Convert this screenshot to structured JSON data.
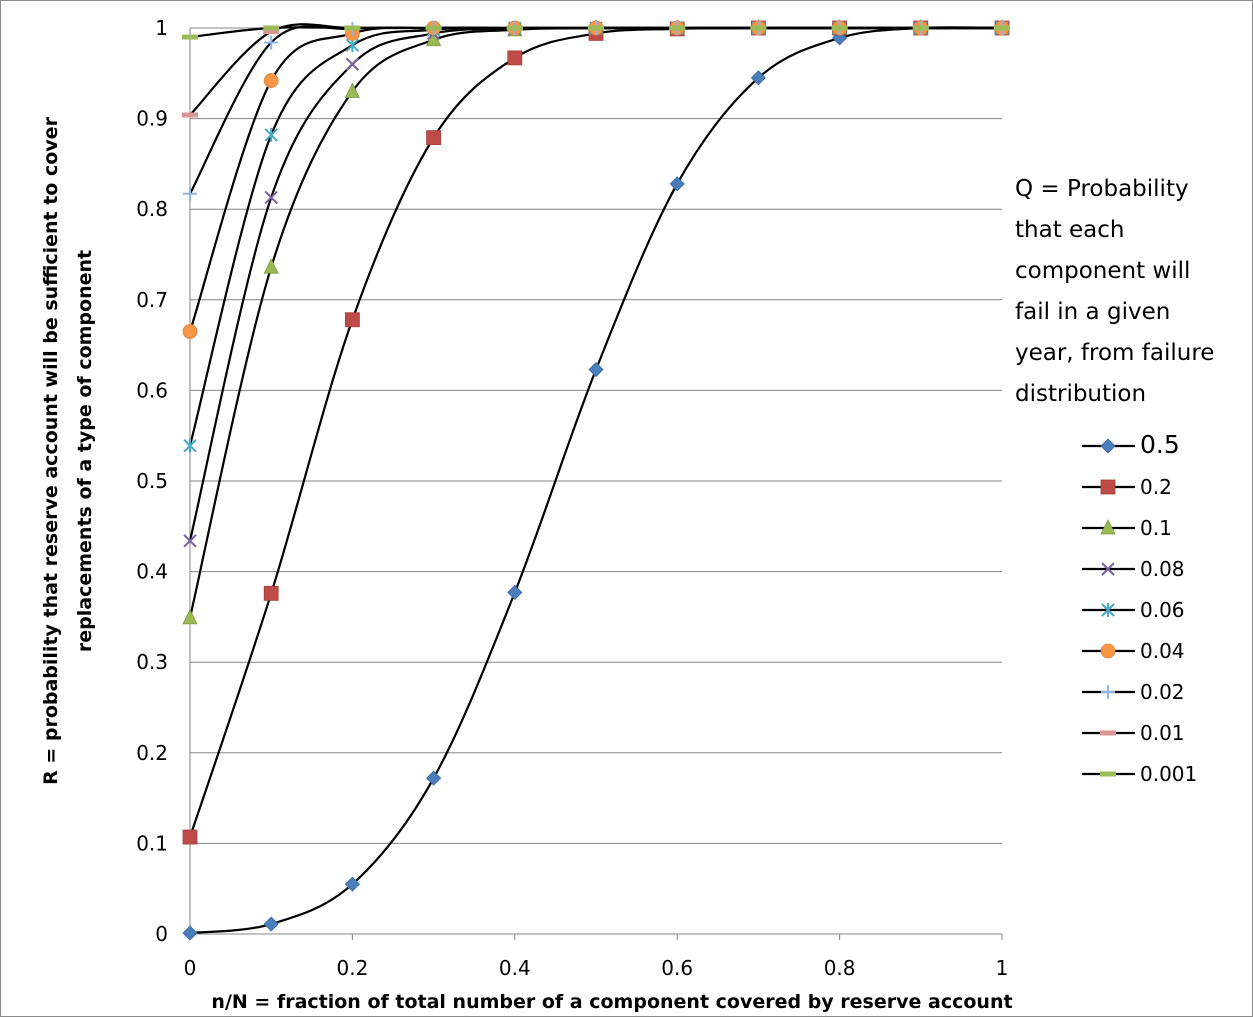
{
  "chart_data": {
    "type": "line",
    "xlabel": "n/N = fraction of total number of a component covered by reserve account",
    "ylabel_lines": [
      "R = probability that reserve account will be sufficient to cover",
      "replacements of a type of component"
    ],
    "xlim": [
      0,
      1
    ],
    "ylim": [
      0,
      1
    ],
    "x_ticks": [
      "0",
      "0.2",
      "0.4",
      "0.6",
      "0.8",
      "1"
    ],
    "y_ticks": [
      "0",
      "0.1",
      "0.2",
      "0.3",
      "0.4",
      "0.5",
      "0.6",
      "0.7",
      "0.8",
      "0.9",
      "1"
    ],
    "grid": "horizontal",
    "legend_position": "right",
    "legend_title_lines": [
      "Q = Probability",
      "that each",
      "component will",
      "fail in a given",
      "year, from failure",
      "distribution"
    ],
    "x": [
      0,
      0.1,
      0.2,
      0.3,
      0.4,
      0.5,
      0.6,
      0.7,
      0.8,
      0.9,
      1.0
    ],
    "series": [
      {
        "name": "0.5",
        "marker": "diamond",
        "color": "#4a7ebb",
        "values": [
          0.001,
          0.011,
          0.055,
          0.172,
          0.377,
          0.623,
          0.828,
          0.945,
          0.989,
          1.0,
          1.0
        ]
      },
      {
        "name": "0.2",
        "marker": "square",
        "color": "#be4b48",
        "values": [
          0.107,
          0.376,
          0.678,
          0.879,
          0.967,
          0.994,
          0.999,
          1.0,
          1.0,
          1.0,
          1.0
        ]
      },
      {
        "name": "0.1",
        "marker": "triangle",
        "color": "#98b954",
        "values": [
          0.349,
          0.736,
          0.93,
          0.987,
          0.998,
          1.0,
          1.0,
          1.0,
          1.0,
          1.0,
          1.0
        ]
      },
      {
        "name": "0.08",
        "marker": "x",
        "color": "#7d60a0",
        "values": [
          0.434,
          0.813,
          0.96,
          0.994,
          0.999,
          1.0,
          1.0,
          1.0,
          1.0,
          1.0,
          1.0
        ]
      },
      {
        "name": "0.06",
        "marker": "star",
        "color": "#46aac5",
        "values": [
          0.539,
          0.882,
          0.981,
          0.998,
          1.0,
          1.0,
          1.0,
          1.0,
          1.0,
          1.0,
          1.0
        ]
      },
      {
        "name": "0.04",
        "marker": "circle",
        "color": "#f79646",
        "values": [
          0.665,
          0.942,
          0.994,
          1.0,
          1.0,
          1.0,
          1.0,
          1.0,
          1.0,
          1.0,
          1.0
        ]
      },
      {
        "name": "0.02",
        "marker": "plus",
        "color": "#8eb4e3",
        "values": [
          0.817,
          0.984,
          0.999,
          1.0,
          1.0,
          1.0,
          1.0,
          1.0,
          1.0,
          1.0,
          1.0
        ]
      },
      {
        "name": "0.01",
        "marker": "dash",
        "color": "#d99694",
        "values": [
          0.904,
          0.996,
          1.0,
          1.0,
          1.0,
          1.0,
          1.0,
          1.0,
          1.0,
          1.0,
          1.0
        ]
      },
      {
        "name": "0.001",
        "marker": "dash",
        "color": "#9bbb59",
        "values": [
          0.99,
          1.0,
          1.0,
          1.0,
          1.0,
          1.0,
          1.0,
          1.0,
          1.0,
          1.0,
          1.0
        ]
      }
    ]
  }
}
